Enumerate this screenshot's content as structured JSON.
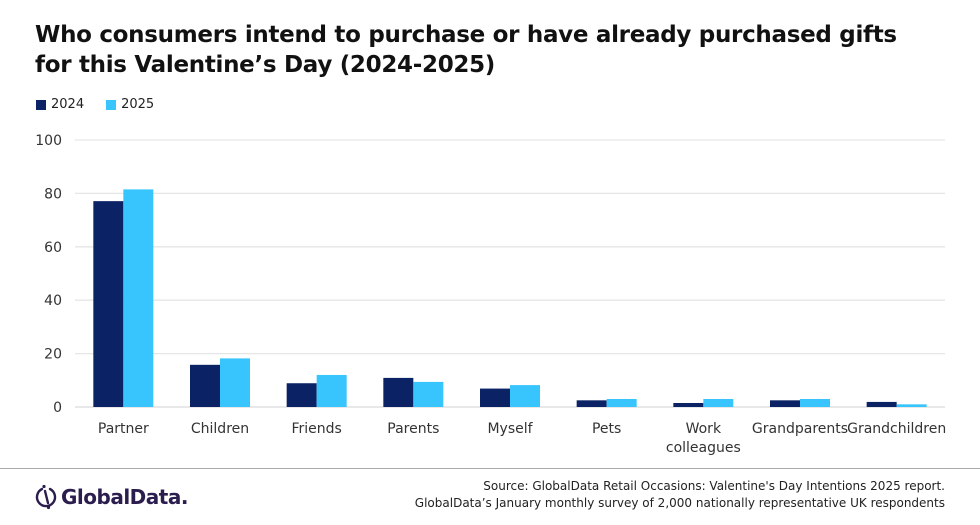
{
  "header": {
    "title_line1": "Who consumers intend to purchase or have already purchased gifts",
    "title_line2": "for this Valentine’s Day (2024-2025)"
  },
  "legend": [
    {
      "label": "2024",
      "color": "#0b2265"
    },
    {
      "label": "2025",
      "color": "#38c4fc"
    }
  ],
  "chart_data": {
    "type": "bar",
    "title": "Who consumers intend to purchase or have already purchased gifts for this Valentine’s Day (2024-2025)",
    "xlabel": "",
    "ylabel": "",
    "ylim": [
      0,
      100
    ],
    "yticks": [
      0,
      20,
      40,
      60,
      80,
      100
    ],
    "grid": true,
    "legend_position": "top-left",
    "categories": [
      "Partner",
      "Children",
      "Friends",
      "Parents",
      "Myself",
      "Pets",
      "Work colleagues",
      "Grandparents",
      "Grandchildren"
    ],
    "category_label_lines": [
      [
        "Partner"
      ],
      [
        "Children"
      ],
      [
        "Friends"
      ],
      [
        "Parents"
      ],
      [
        "Myself"
      ],
      [
        "Pets"
      ],
      [
        "Work",
        "colleagues"
      ],
      [
        "Grandparents"
      ],
      [
        "Grandchildren"
      ]
    ],
    "series": [
      {
        "name": "2024",
        "color": "#0b2265",
        "values": [
          77.1,
          15.8,
          8.9,
          10.9,
          6.9,
          2.5,
          1.5,
          2.5,
          1.9
        ]
      },
      {
        "name": "2025",
        "color": "#38c4fc",
        "values": [
          81.5,
          18.2,
          12.0,
          9.4,
          8.2,
          3.0,
          3.0,
          3.0,
          1.0
        ]
      }
    ]
  },
  "footer": {
    "logo_text": "GlobalData.",
    "source_line1": "Source: GlobalData Retail Occasions: Valentine's Day Intentions 2025 report.",
    "source_line2": "GlobalData’s January monthly survey of 2,000 nationally representative UK respondents"
  }
}
